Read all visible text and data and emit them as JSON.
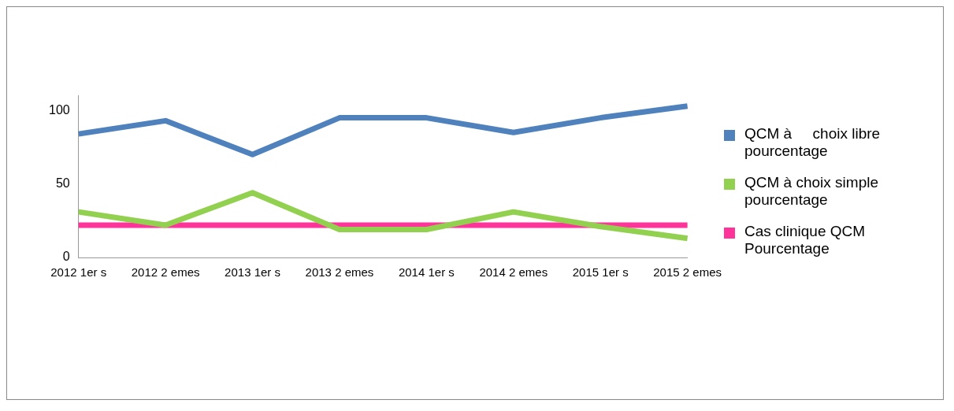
{
  "chart_data": {
    "type": "line",
    "categories": [
      "2012 1er s",
      "2012 2 emes",
      "2013 1er s",
      "2013 2 emes",
      "2014 1er s",
      "2014 2 emes",
      "2015 1er s",
      "2015 2 emes"
    ],
    "series": [
      {
        "name": "QCM à     choix libre pourcentage",
        "color": "#4f81bd",
        "values": [
          84,
          93,
          70,
          95,
          95,
          85,
          95,
          103
        ]
      },
      {
        "name": "QCM à choix simple pourcentage",
        "color": "#92d050",
        "values": [
          31,
          22,
          44,
          19,
          19,
          31,
          21,
          13
        ]
      },
      {
        "name": "Cas clinique QCM Pourcentage",
        "color": "#ff3399",
        "values": [
          22,
          22,
          22,
          22,
          22,
          22,
          22,
          22
        ]
      }
    ],
    "ylim": [
      0,
      110
    ],
    "yticks": [
      0,
      50,
      100
    ],
    "grid": false,
    "legend": "right",
    "marker": "none",
    "line_style": "solid"
  }
}
